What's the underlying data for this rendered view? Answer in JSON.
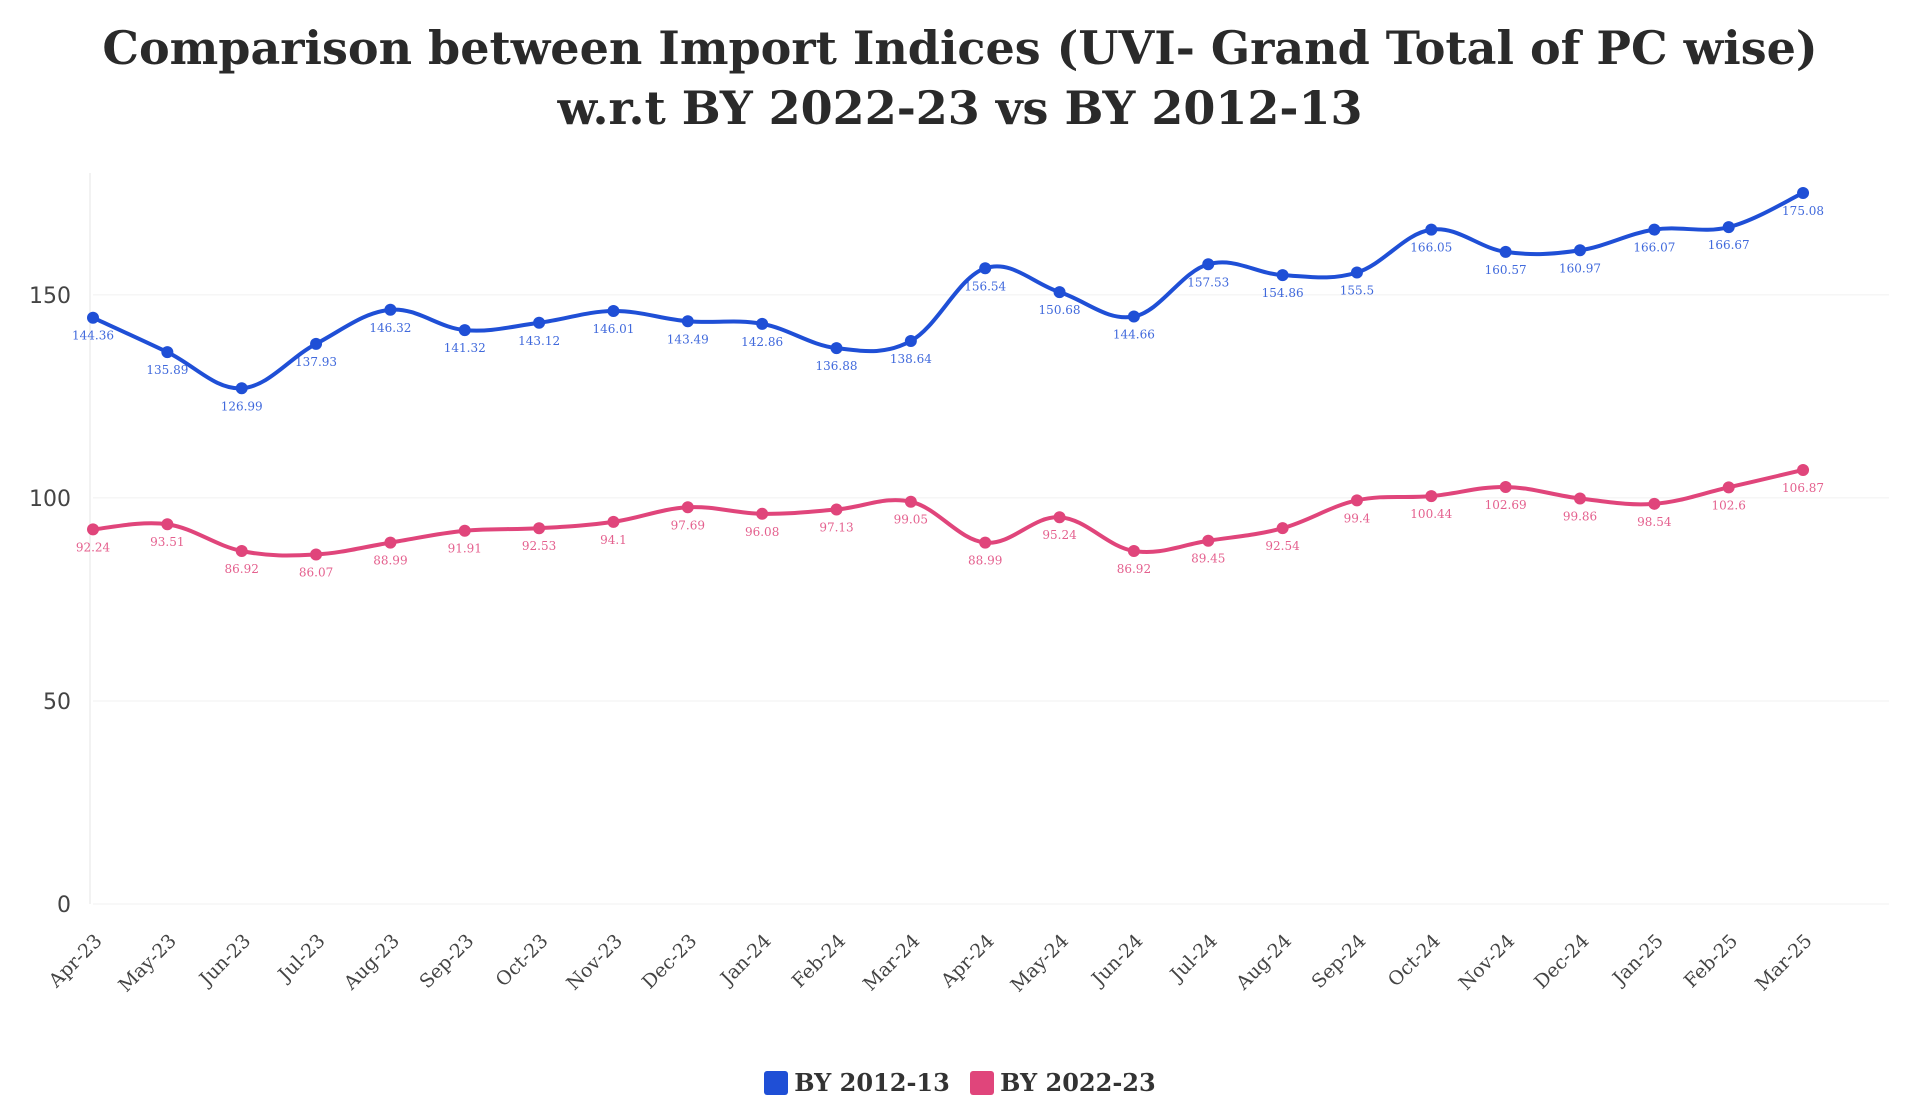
{
  "chart_data": {
    "type": "line",
    "title": [
      "Comparison between Import Indices (UVI- Grand Total of PC wise)",
      "w.r.t BY 2022-23 vs BY 2012-13"
    ],
    "xlabel": "",
    "ylabel": "",
    "categories": [
      "Apr-23",
      "May-23",
      "Jun-23",
      "Jul-23",
      "Aug-23",
      "Sep-23",
      "Oct-23",
      "Nov-23",
      "Dec-23",
      "Jan-24",
      "Feb-24",
      "Mar-24",
      "Apr-24",
      "May-24",
      "Jun-24",
      "Jul-24",
      "Aug-24",
      "Sep-24",
      "Oct-24",
      "Nov-24",
      "Dec-24",
      "Jan-25",
      "Feb-25",
      "Mar-25"
    ],
    "ylim": [
      0,
      180
    ],
    "yticks": [
      0,
      50,
      100,
      150
    ],
    "grid": true,
    "legend_position": "bottom",
    "series": [
      {
        "name": "BY 2012-13",
        "color": "#1f4fd6",
        "values": [
          144.36,
          135.89,
          126.99,
          137.93,
          146.32,
          141.32,
          143.12,
          146.01,
          143.49,
          142.86,
          136.88,
          138.64,
          156.54,
          150.68,
          144.66,
          157.53,
          154.86,
          155.5,
          166.05,
          160.57,
          160.97,
          166.07,
          166.67,
          175.08
        ]
      },
      {
        "name": "BY 2022-23",
        "color": "#e0457b",
        "values": [
          92.24,
          93.51,
          86.92,
          86.07,
          88.99,
          91.91,
          92.53,
          94.1,
          97.69,
          96.08,
          97.13,
          99.05,
          88.99,
          95.24,
          86.92,
          89.45,
          92.54,
          99.4,
          100.44,
          102.69,
          99.86,
          98.54,
          102.6,
          106.87
        ]
      }
    ]
  }
}
